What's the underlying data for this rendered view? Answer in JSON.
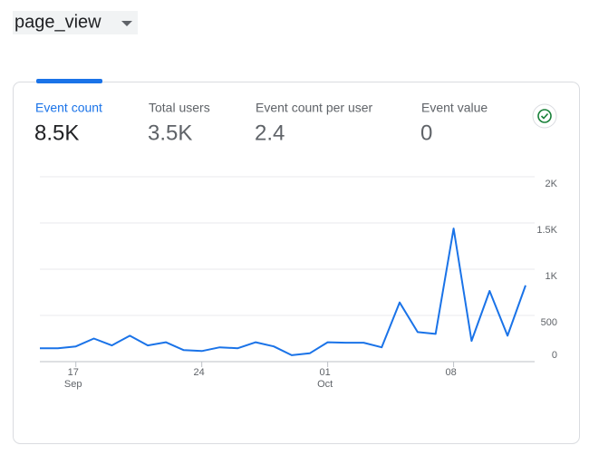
{
  "dropdown": {
    "label": "page_view"
  },
  "metrics": [
    {
      "label": "Event count",
      "value": "8.5K"
    },
    {
      "label": "Total users",
      "value": "3.5K"
    },
    {
      "label": "Event count per user",
      "value": "2.4"
    },
    {
      "label": "Event value",
      "value": "0"
    }
  ],
  "chart_data": {
    "type": "line",
    "categories": [
      null,
      null,
      "17",
      null,
      null,
      null,
      null,
      null,
      null,
      "24",
      null,
      null,
      null,
      null,
      null,
      null,
      "01",
      null,
      null,
      null,
      null,
      null,
      null,
      "08",
      null,
      null,
      null,
      null
    ],
    "months": [
      null,
      null,
      "Sep",
      null,
      null,
      null,
      null,
      null,
      null,
      null,
      null,
      null,
      null,
      null,
      null,
      null,
      "Oct",
      null,
      null,
      null,
      null,
      null,
      null,
      null,
      null,
      null,
      null,
      null
    ],
    "series": [
      {
        "name": "Event count",
        "color": "#1a73e8",
        "values": [
          145,
          145,
          165,
          250,
          175,
          280,
          175,
          210,
          125,
          115,
          155,
          145,
          210,
          165,
          70,
          90,
          210,
          205,
          205,
          155,
          640,
          320,
          300,
          1440,
          225,
          765,
          280,
          825
        ]
      }
    ],
    "ylim": [
      0,
      2000
    ],
    "yticks": [
      0,
      500,
      {
        "value": 1000,
        "label": "1K"
      },
      {
        "value": 1500,
        "label": "1.5K"
      },
      {
        "value": 2000,
        "label": "2K"
      }
    ],
    "grid": true
  }
}
